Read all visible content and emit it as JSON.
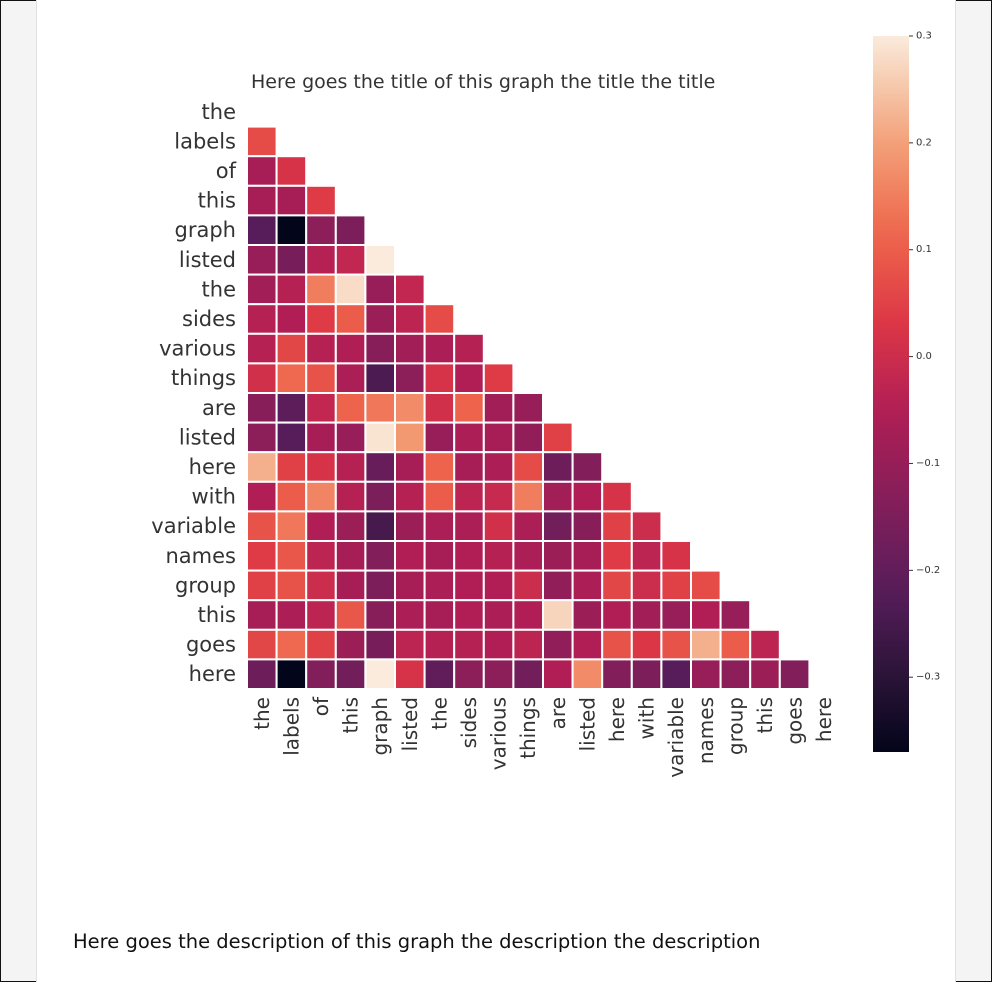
{
  "chart_data": {
    "type": "heatmap",
    "title": "Here goes the title of this graph the title the title",
    "description": "Here goes the description of this graph the description the description",
    "labels": [
      "the",
      "labels",
      "of",
      "this",
      "graph",
      "listed",
      "the",
      "sides",
      "various",
      "things",
      "are",
      "listed",
      "here",
      "with",
      "variable",
      "names",
      "group",
      "this",
      "goes",
      "here"
    ],
    "masked": "upper-triangle-and-diagonal",
    "values": [
      [],
      [
        0.07
      ],
      [
        -0.07,
        0.02
      ],
      [
        -0.07,
        -0.07,
        0.04
      ],
      [
        -0.22,
        -0.37,
        -0.12,
        -0.15
      ],
      [
        -0.1,
        -0.16,
        -0.04,
        -0.02,
        0.3
      ],
      [
        -0.08,
        -0.04,
        0.15,
        0.28,
        -0.1,
        -0.02
      ],
      [
        -0.04,
        -0.05,
        0.04,
        0.1,
        -0.09,
        -0.03,
        0.07
      ],
      [
        -0.04,
        0.06,
        -0.04,
        -0.05,
        -0.13,
        -0.08,
        -0.06,
        -0.04
      ],
      [
        0.01,
        0.12,
        0.08,
        -0.06,
        -0.24,
        -0.12,
        0.02,
        -0.05,
        0.04
      ],
      [
        -0.13,
        -0.21,
        -0.02,
        0.11,
        0.14,
        0.17,
        0.01,
        0.11,
        -0.08,
        -0.1
      ],
      [
        -0.12,
        -0.22,
        -0.07,
        -0.1,
        0.29,
        0.19,
        -0.1,
        -0.06,
        -0.07,
        -0.11,
        0.05
      ],
      [
        0.22,
        0.05,
        0.02,
        -0.04,
        -0.19,
        -0.07,
        0.11,
        -0.07,
        -0.06,
        0.07,
        -0.18,
        -0.14
      ],
      [
        -0.05,
        0.1,
        0.16,
        -0.04,
        -0.15,
        -0.04,
        0.1,
        -0.03,
        -0.01,
        0.15,
        -0.08,
        -0.05,
        0.02
      ],
      [
        0.08,
        0.14,
        -0.05,
        -0.09,
        -0.25,
        -0.09,
        -0.06,
        -0.06,
        0.01,
        -0.06,
        -0.17,
        -0.13,
        0.05,
        0.0
      ],
      [
        0.04,
        0.09,
        -0.03,
        -0.07,
        -0.14,
        -0.05,
        -0.07,
        -0.05,
        -0.04,
        -0.06,
        -0.09,
        -0.07,
        0.04,
        -0.03,
        0.02
      ],
      [
        0.05,
        0.08,
        0.0,
        -0.07,
        -0.15,
        -0.07,
        -0.06,
        -0.05,
        -0.05,
        0.0,
        -0.11,
        -0.06,
        0.06,
        0.0,
        0.05,
        0.07
      ],
      [
        -0.07,
        -0.06,
        -0.03,
        0.09,
        -0.13,
        -0.06,
        -0.07,
        -0.05,
        -0.06,
        -0.05,
        0.27,
        -0.09,
        -0.05,
        -0.08,
        -0.1,
        -0.05,
        -0.1
      ],
      [
        0.06,
        0.12,
        0.05,
        -0.09,
        -0.16,
        -0.03,
        -0.04,
        -0.04,
        -0.05,
        -0.03,
        -0.11,
        -0.05,
        0.08,
        0.03,
        0.08,
        0.22,
        0.1,
        -0.03
      ],
      [
        -0.18,
        -0.37,
        -0.14,
        -0.17,
        0.3,
        0.02,
        -0.2,
        -0.12,
        -0.12,
        -0.17,
        -0.05,
        0.17,
        -0.14,
        -0.15,
        -0.22,
        -0.1,
        -0.12,
        -0.09,
        -0.14
      ]
    ],
    "colorbar": {
      "range": [
        -0.37,
        0.3
      ],
      "ticks": [
        0.3,
        0.2,
        0.1,
        0.0,
        -0.1,
        -0.2,
        -0.3
      ],
      "tick_labels": [
        "0.3",
        "0.2",
        "0.1",
        "0.0",
        "−0.1",
        "−0.2",
        "−0.3"
      ]
    }
  }
}
